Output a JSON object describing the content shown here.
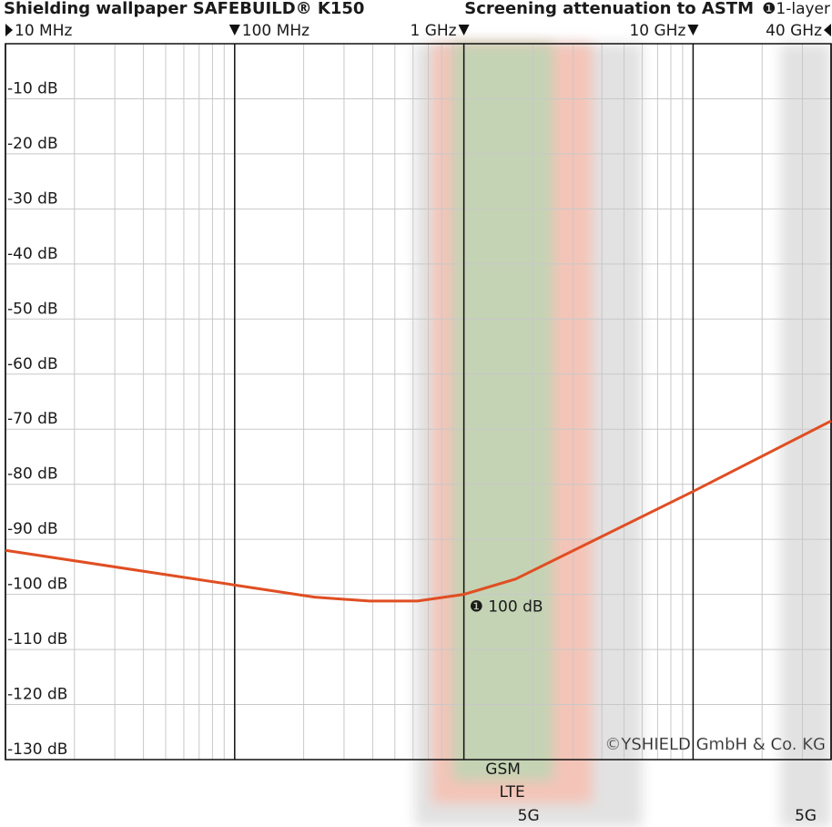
{
  "chart_data": {
    "type": "line",
    "title": "Shielding wallpaper SAFEBUILD® K150",
    "subtitle": "Screening attenuation to ASTM",
    "log_x": true,
    "grid": true,
    "xlim": [
      10,
      40000
    ],
    "xticks": [
      {
        "value": 10,
        "label": "10 MHz"
      },
      {
        "value": 100,
        "label": "100 MHz"
      },
      {
        "value": 1000,
        "label": "1 GHz"
      },
      {
        "value": 10000,
        "label": "10 GHz"
      },
      {
        "value": 40000,
        "label": "40 GHz"
      }
    ],
    "ylim": [
      -130,
      0
    ],
    "yticks": [
      {
        "value": -10,
        "label": "-10 dB"
      },
      {
        "value": -20,
        "label": "-20 dB"
      },
      {
        "value": -30,
        "label": "-30 dB"
      },
      {
        "value": -40,
        "label": "-40 dB"
      },
      {
        "value": -50,
        "label": "-50 dB"
      },
      {
        "value": -60,
        "label": "-60 dB"
      },
      {
        "value": -70,
        "label": "-70 dB"
      },
      {
        "value": -80,
        "label": "-80 dB"
      },
      {
        "value": -90,
        "label": "-90 dB"
      },
      {
        "value": -100,
        "label": "-100 dB"
      },
      {
        "value": -110,
        "label": "-110 dB"
      },
      {
        "value": -120,
        "label": "-120 dB"
      },
      {
        "value": -130,
        "label": "-130 dB"
      }
    ],
    "bands": [
      {
        "name": "5G",
        "color": "#e2e2e2",
        "range": [
          611,
          6000
        ]
      },
      {
        "name": "LTE",
        "color": "#f4c4b8",
        "range": [
          727,
          3630
        ]
      },
      {
        "name": "GSM",
        "color": "#c4d3b4",
        "range": [
          896,
          2450
        ]
      },
      {
        "name": "5G",
        "color": "#e2e2e2",
        "range": [
          24000,
          40000
        ]
      }
    ],
    "series": [
      {
        "name": "❶1-layer",
        "color": "#e04e22",
        "x": [
          10,
          100,
          223,
          386,
          628,
          1000,
          1683,
          10000,
          40000
        ],
        "values": [
          -92,
          -98.3,
          -100.5,
          -101.2,
          -101.2,
          -100,
          -97.2,
          -81.3,
          -68.5
        ]
      }
    ],
    "annotation": {
      "x": 1000,
      "y": -100,
      "text": "❶ 100 dB"
    },
    "copyright": "©YSHIELD GmbH & Co. KG"
  }
}
